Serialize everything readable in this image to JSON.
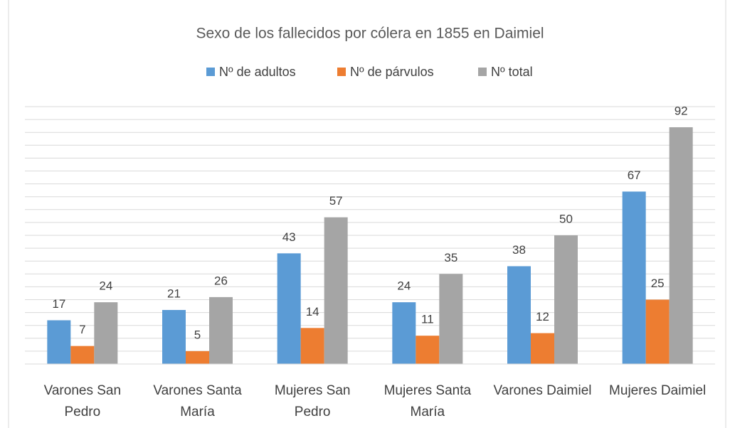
{
  "chart_data": {
    "type": "bar",
    "title": "Sexo de los fallecidos por cólera en 1855 en Daimiel",
    "categories": [
      "Varones San Pedro",
      "Varones Santa María",
      "Mujeres San Pedro",
      "Mujeres Santa María",
      "Varones Daimiel",
      "Mujeres Daimiel"
    ],
    "series": [
      {
        "name": "Nº de adultos",
        "color": "#5b9bd5",
        "values": [
          17,
          21,
          43,
          24,
          38,
          67
        ]
      },
      {
        "name": "Nº de párvulos",
        "color": "#ed7d31",
        "values": [
          7,
          5,
          14,
          11,
          12,
          25
        ]
      },
      {
        "name": "Nº total",
        "color": "#a5a5a5",
        "values": [
          24,
          26,
          57,
          35,
          50,
          92
        ]
      }
    ],
    "ylim": [
      0,
      100
    ],
    "yticks": [
      0,
      5,
      10,
      15,
      20,
      25,
      30,
      35,
      40,
      45,
      50,
      55,
      60,
      65,
      70,
      75,
      80,
      85,
      90,
      95,
      100
    ],
    "grid": true,
    "legend": "top"
  }
}
